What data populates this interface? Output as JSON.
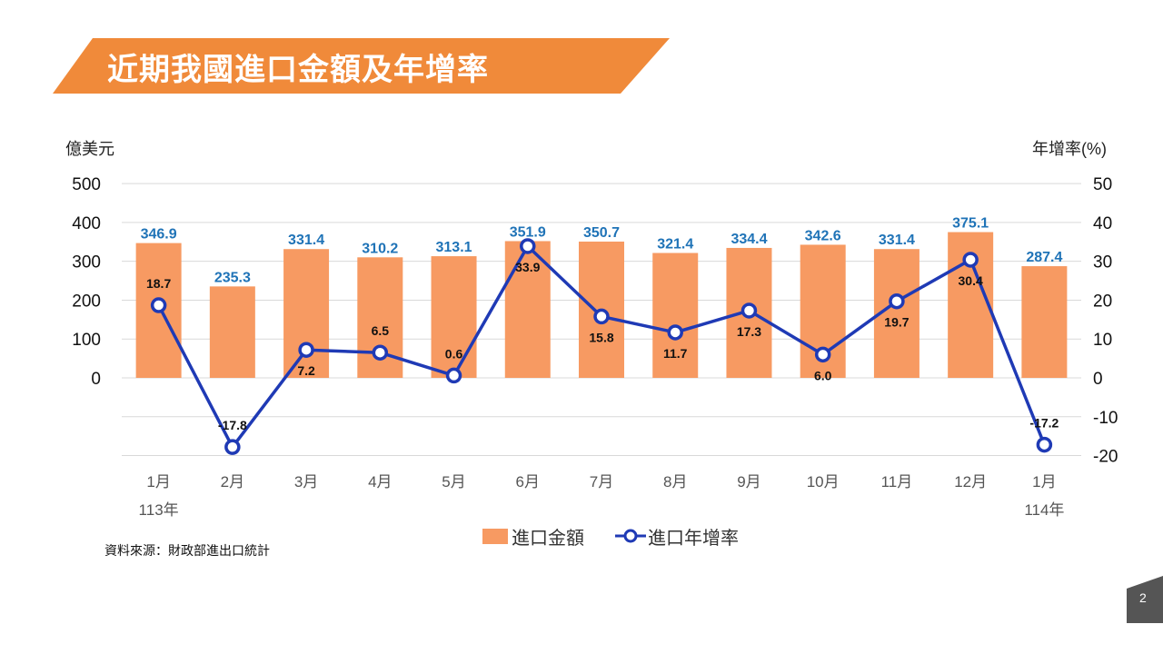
{
  "slide": {
    "title": "近期我國進口金額及年增率",
    "y_left_label": "億美元",
    "y_right_label": "年增率(%)",
    "source": "資料來源：財政部進出口統計",
    "page_number": "2",
    "colors": {
      "banner": "#F08A3A",
      "bar": "#F79A62",
      "line": "#1F3AB5",
      "bar_label": "#1F73B7"
    }
  },
  "chart_data": {
    "type": "bar",
    "categories": [
      "1月",
      "2月",
      "3月",
      "4月",
      "5月",
      "6月",
      "7月",
      "8月",
      "9月",
      "10月",
      "11月",
      "12月",
      "1月"
    ],
    "year_labels": [
      {
        "index": 0,
        "text": "113年"
      },
      {
        "index": 12,
        "text": "114年"
      }
    ],
    "series": [
      {
        "name": "進口金額",
        "type": "bar",
        "axis": "left",
        "values": [
          346.9,
          235.3,
          331.4,
          310.2,
          313.1,
          351.9,
          350.7,
          321.4,
          334.4,
          342.6,
          331.4,
          375.1,
          287.4
        ]
      },
      {
        "name": "進口年增率",
        "type": "line",
        "axis": "right",
        "values": [
          18.7,
          -17.8,
          7.2,
          6.5,
          0.6,
          33.9,
          15.8,
          11.7,
          17.3,
          6.0,
          19.7,
          30.4,
          -17.2
        ]
      }
    ],
    "left_axis": {
      "ticks": [
        0,
        100,
        200,
        300,
        400,
        500
      ],
      "range": [
        -200,
        500
      ]
    },
    "right_axis": {
      "ticks": [
        -20,
        -10,
        0,
        10,
        20,
        30,
        40,
        50
      ],
      "range": [
        -20,
        50
      ]
    },
    "line_label_positions": [
      "above",
      "above",
      "below",
      "above",
      "above",
      "below",
      "below",
      "below",
      "below",
      "below",
      "below",
      "below",
      "above"
    ],
    "legend": "bottom-center",
    "grid": true
  }
}
